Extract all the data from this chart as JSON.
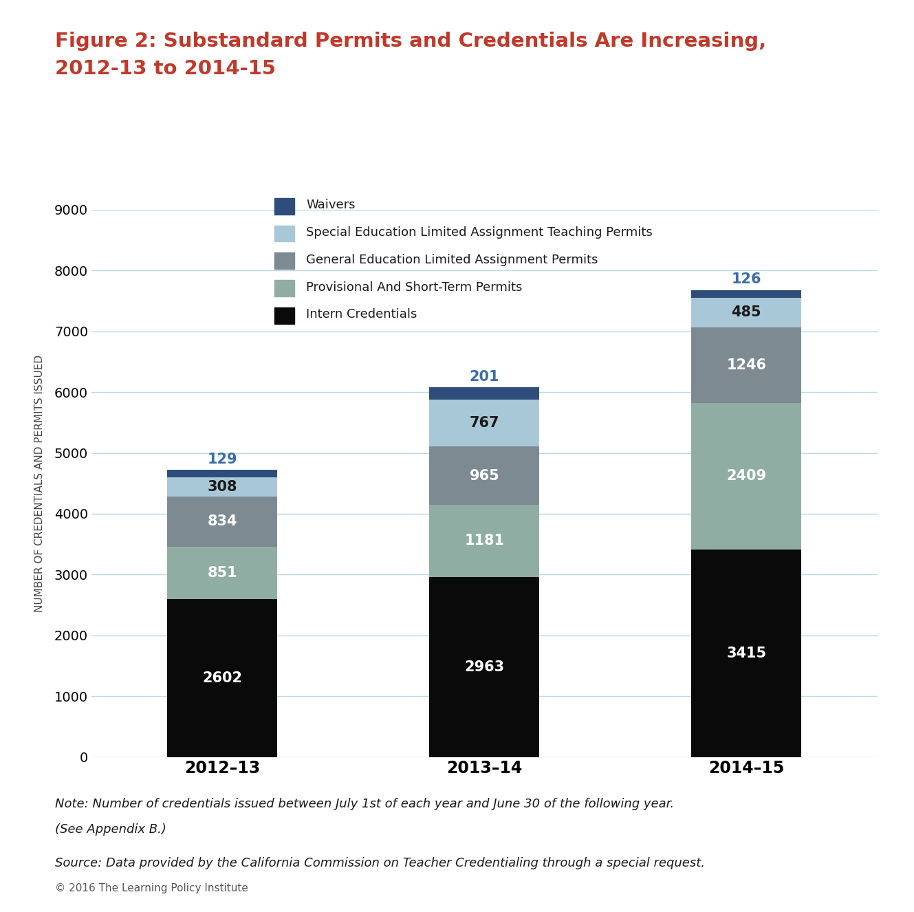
{
  "title_line1": "Figure 2: Substandard Permits and Credentials Are Increasing,",
  "title_line2": "2012-13 to 2014-15",
  "title_color": "#c0392b",
  "categories": [
    "2012–13",
    "2013–14",
    "2014–15"
  ],
  "series": [
    {
      "label": "Intern Credentials",
      "color": "#0a0a0a",
      "values": [
        2602,
        2963,
        3415
      ],
      "text_color": "#ffffff"
    },
    {
      "label": "Provisional And Short-Term Permits",
      "color": "#8fada3",
      "values": [
        851,
        1181,
        2409
      ],
      "text_color": "#ffffff"
    },
    {
      "label": "General Education Limited Assignment Permits",
      "color": "#7d8a92",
      "values": [
        834,
        965,
        1246
      ],
      "text_color": "#ffffff"
    },
    {
      "label": "Special Education Limited Assignment Teaching Permits",
      "color": "#a8c8d8",
      "values": [
        308,
        767,
        485
      ],
      "text_color": "#1a1a1a"
    },
    {
      "label": "Waivers",
      "color": "#2e4d7b",
      "values": [
        129,
        201,
        126
      ],
      "text_color": "#3a6ea8",
      "label_color": "#3a6ea8"
    }
  ],
  "ylabel": "NUMBER OF CREDENTIALS AND PERMITS ISSUED",
  "ylim": [
    0,
    9000
  ],
  "yticks": [
    0,
    1000,
    2000,
    3000,
    4000,
    5000,
    6000,
    7000,
    8000,
    9000
  ],
  "grid_color": "#b8d8e8",
  "background_color": "#ffffff",
  "bar_width": 0.42,
  "note_line1": "Note: Number of credentials issued between July 1st of each year and June 30 of the following year.",
  "note_line2": "(See Appendix B.)",
  "source_line": "Source: Data provided by the California Commission on Teacher Credentialing through a special request.",
  "copyright_line": "© 2016 The Learning Policy Institute",
  "legend_order": [
    "Waivers",
    "Special Education Limited Assignment Teaching Permits",
    "General Education Limited Assignment Permits",
    "Provisional And Short-Term Permits",
    "Intern Credentials"
  ]
}
